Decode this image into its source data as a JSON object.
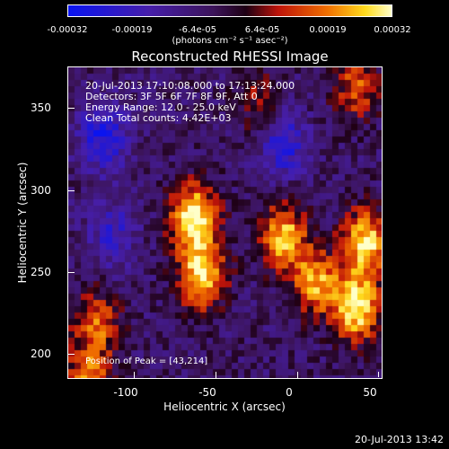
{
  "colorbar": {
    "ticks": [
      "-0.00032",
      "-0.00019",
      "-6.4e-05",
      "6.4e-05",
      "0.00019",
      "0.00032"
    ],
    "unit": "(photons cm⁻² s⁻¹ asec⁻²)"
  },
  "header": {
    "title": "Reconstructed RHESSI Image"
  },
  "info": {
    "time": "20-Jul-2013 17:10:08.000 to 17:13:24.000",
    "detectors": "Detectors: 3F 5F 6F 7F 8F 9F, Att 0",
    "energy": "Energy Range: 12.0 - 25.0 keV",
    "clean": "Clean     Total counts: 4.42E+03",
    "peak": "Position of Peak = [43,214]"
  },
  "footer": {
    "timestamp": "20-Jul-2013 13:42"
  },
  "chart_data": {
    "type": "heatmap",
    "title": "Reconstructed RHESSI Image",
    "xlabel": "Heliocentric X (arcsec)",
    "ylabel": "Heliocentric Y (arcsec)",
    "xlim": [
      -137,
      55
    ],
    "ylim": [
      182,
      372
    ],
    "xticks": [
      "-100",
      "-50",
      "0",
      "50"
    ],
    "yticks": [
      "200",
      "250",
      "300",
      "350"
    ],
    "colorbar_range": [
      -0.00032,
      0.00032
    ],
    "colormap": "blue-purple-red-yellow-white",
    "peak": [
      43,
      214
    ],
    "blobs": [
      {
        "x": -120,
        "y": 215,
        "intensity": 0.55
      },
      {
        "x": -60,
        "y": 280,
        "intensity": 1.0
      },
      {
        "x": -55,
        "y": 245,
        "intensity": 0.9
      },
      {
        "x": -5,
        "y": 268,
        "intensity": 0.8
      },
      {
        "x": 15,
        "y": 240,
        "intensity": 0.7
      },
      {
        "x": 40,
        "y": 225,
        "intensity": 0.95
      },
      {
        "x": 45,
        "y": 265,
        "intensity": 0.85
      },
      {
        "x": -125,
        "y": 180,
        "intensity": 0.6
      },
      {
        "x": 40,
        "y": 360,
        "intensity": 0.5
      },
      {
        "x": -20,
        "y": 350,
        "intensity": 0.3
      }
    ],
    "cold_regions": [
      {
        "x": -115,
        "y": 330,
        "intensity": -0.6
      },
      {
        "x": -5,
        "y": 325,
        "intensity": -0.5
      },
      {
        "x": -110,
        "y": 270,
        "intensity": -0.4
      }
    ]
  }
}
